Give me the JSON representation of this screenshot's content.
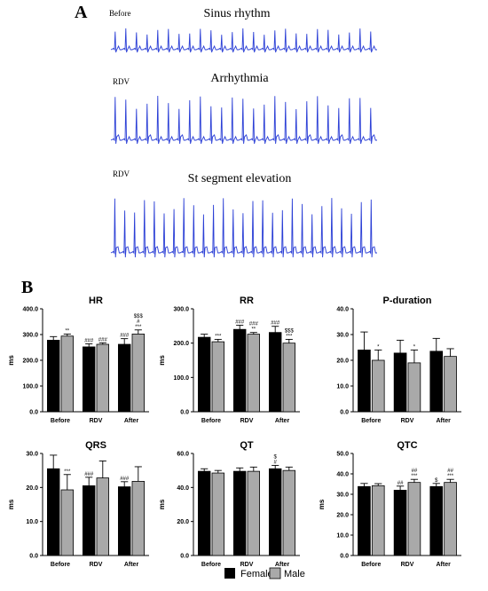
{
  "panels": {
    "a": "A",
    "b": "B"
  },
  "ecg": [
    {
      "label": "Before",
      "title": "Sinus rhythm"
    },
    {
      "label": "RDV",
      "title": "Arrhythmia"
    },
    {
      "label": "RDV",
      "title": "St segment elevation"
    }
  ],
  "legend": [
    {
      "name": "Female",
      "color": "#000000"
    },
    {
      "name": "Male",
      "color": "#a9a9a9"
    }
  ],
  "chart_data": [
    {
      "type": "bar",
      "title": "HR",
      "ylabel": "ms",
      "categories": [
        "Before",
        "RDV",
        "After"
      ],
      "yticks": [
        "0.0",
        "100.0",
        "200.0",
        "300.0",
        "400.0"
      ],
      "ylim": [
        0,
        400
      ],
      "series": [
        {
          "name": "Female",
          "values": [
            278,
            252,
            262
          ],
          "errors": [
            14,
            12,
            22
          ],
          "sig": [
            "",
            "###",
            "###"
          ]
        },
        {
          "name": "Male",
          "values": [
            294,
            262,
            302
          ],
          "errors": [
            8,
            6,
            16
          ],
          "sig": [
            "**",
            "###",
            "$$$|#|***"
          ]
        }
      ]
    },
    {
      "type": "bar",
      "title": "RR",
      "ylabel": "ms",
      "categories": [
        "Before",
        "RDV",
        "After"
      ],
      "yticks": [
        "0.0",
        "100.0",
        "200.0",
        "300.0"
      ],
      "ylim": [
        0,
        300
      ],
      "series": [
        {
          "name": "Female",
          "values": [
            217,
            240,
            231
          ],
          "errors": [
            9,
            12,
            18
          ],
          "sig": [
            "",
            "###",
            "###"
          ]
        },
        {
          "name": "Male",
          "values": [
            204,
            226,
            200
          ],
          "errors": [
            7,
            5,
            11
          ],
          "sig": [
            "***",
            "###|**",
            "$$$|***"
          ]
        }
      ]
    },
    {
      "type": "bar",
      "title": "P-duration",
      "ylabel": "",
      "categories": [
        "Before",
        "RDV",
        "After"
      ],
      "yticks": [
        "0.0",
        "10.0",
        "20.0",
        "30.0",
        "40.0"
      ],
      "ylim": [
        0,
        40
      ],
      "series": [
        {
          "name": "Female",
          "values": [
            24,
            22.8,
            23.5
          ],
          "errors": [
            7,
            5,
            5
          ],
          "sig": [
            "",
            "",
            ""
          ]
        },
        {
          "name": "Male",
          "values": [
            20,
            19,
            21.5
          ],
          "errors": [
            4,
            5,
            3
          ],
          "sig": [
            "*",
            "*",
            ""
          ]
        }
      ]
    },
    {
      "type": "bar",
      "title": "QRS",
      "ylabel": "ms",
      "categories": [
        "Before",
        "RDV",
        "After"
      ],
      "yticks": [
        "0.0",
        "10.0",
        "20.0",
        "30.0"
      ],
      "ylim": [
        0,
        30
      ],
      "series": [
        {
          "name": "Female",
          "values": [
            25.5,
            20.5,
            20.2
          ],
          "errors": [
            4,
            2.5,
            1.5
          ],
          "sig": [
            "",
            "###",
            "###"
          ]
        },
        {
          "name": "Male",
          "values": [
            19.3,
            22.8,
            21.8
          ],
          "errors": [
            4.5,
            5,
            4.3
          ],
          "sig": [
            "***",
            "",
            ""
          ]
        }
      ]
    },
    {
      "type": "bar",
      "title": "QT",
      "ylabel": "ms",
      "categories": [
        "Before",
        "RDV",
        "After"
      ],
      "yticks": [
        "0.0",
        "20.0",
        "40.0",
        "60.0"
      ],
      "ylim": [
        0,
        60
      ],
      "series": [
        {
          "name": "Female",
          "values": [
            49.5,
            49.5,
            51
          ],
          "errors": [
            1.5,
            2,
            2
          ],
          "sig": [
            "",
            "",
            "$|#"
          ]
        },
        {
          "name": "Male",
          "values": [
            48.5,
            49.5,
            50
          ],
          "errors": [
            1.5,
            2.5,
            2
          ],
          "sig": [
            "",
            "",
            ""
          ]
        }
      ]
    },
    {
      "type": "bar",
      "title": "QTC",
      "ylabel": "ms",
      "categories": [
        "Before",
        "RDV",
        "After"
      ],
      "yticks": [
        "0.0",
        "10.0",
        "20.0",
        "30.0",
        "40.0",
        "50.0"
      ],
      "ylim": [
        0,
        50
      ],
      "series": [
        {
          "name": "Female",
          "values": [
            33.8,
            32,
            33.8
          ],
          "errors": [
            1.5,
            2,
            1.5
          ],
          "sig": [
            "",
            "##",
            "$"
          ]
        },
        {
          "name": "Male",
          "values": [
            34.2,
            35.8,
            35.8
          ],
          "errors": [
            1,
            1.5,
            1.5
          ],
          "sig": [
            "",
            "##|***",
            "##|***"
          ]
        }
      ]
    }
  ]
}
